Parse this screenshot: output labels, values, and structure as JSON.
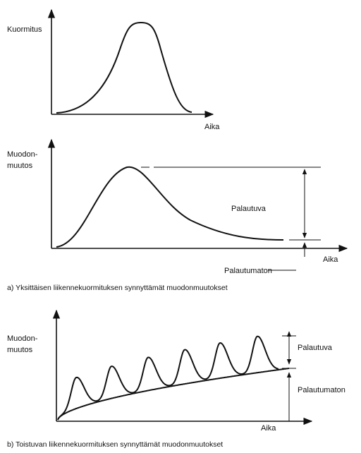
{
  "panels": [
    {
      "y_label": "Kuormitus",
      "x_label": "Aika"
    },
    {
      "y_label_lines": [
        "Muodon-",
        "muutos"
      ],
      "x_label": "Aika",
      "recoverable": "Palautuva",
      "permanent": "Palautumaton",
      "caption": "a)  Yksittäisen liikennekuormituksen synnyttämät muodonmuutokset"
    },
    {
      "y_label_lines": [
        "Muodon-",
        "muutos"
      ],
      "x_label": "Aika",
      "recoverable": "Palautuva",
      "permanent": "Palautumaton",
      "caption": "b)  Toistuvan liikennekuormituksen synnyttämät muodonmuutokset"
    }
  ]
}
